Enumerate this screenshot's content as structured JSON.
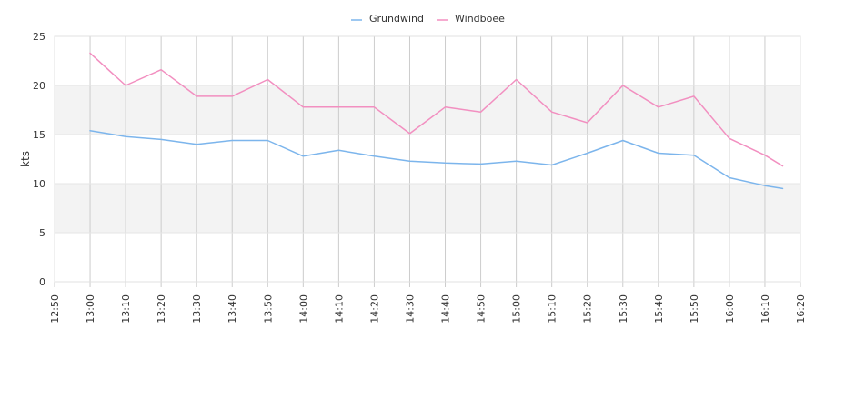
{
  "chart_data": {
    "type": "line",
    "title": "",
    "xlabel": "",
    "ylabel": "kts",
    "x_tick_labels": [
      "12:50",
      "13:00",
      "13:10",
      "13:20",
      "13:30",
      "13:40",
      "13:50",
      "14:00",
      "14:10",
      "14:20",
      "14:30",
      "14:40",
      "14:50",
      "15:00",
      "15:10",
      "15:20",
      "15:30",
      "15:40",
      "15:50",
      "16:00",
      "16:10",
      "16:20"
    ],
    "y_ticks": [
      0,
      5,
      10,
      15,
      20,
      25
    ],
    "ylim": [
      0,
      25
    ],
    "xlim": [
      "12:50",
      "16:20"
    ],
    "grid": true,
    "legend_position": "top-center",
    "x": [
      "13:00",
      "13:10",
      "13:20",
      "13:30",
      "13:40",
      "13:50",
      "14:00",
      "14:10",
      "14:20",
      "14:30",
      "14:40",
      "14:50",
      "15:00",
      "15:10",
      "15:20",
      "15:30",
      "15:40",
      "15:50",
      "16:00",
      "16:10",
      "16:15"
    ],
    "series": [
      {
        "name": "Grundwind",
        "color": "#7cb5ec",
        "values": [
          15.4,
          14.8,
          14.5,
          14.0,
          14.4,
          14.4,
          12.8,
          13.4,
          12.8,
          12.3,
          12.1,
          12.0,
          12.3,
          11.9,
          13.1,
          14.4,
          13.1,
          12.9,
          10.6,
          9.8,
          9.5
        ]
      },
      {
        "name": "Windboee",
        "color": "#f28fc0",
        "values": [
          23.3,
          20.0,
          21.6,
          18.9,
          18.9,
          20.6,
          17.8,
          17.8,
          17.8,
          15.1,
          17.8,
          17.3,
          20.6,
          17.3,
          16.2,
          20.0,
          17.8,
          18.9,
          14.6,
          12.9,
          11.8
        ]
      }
    ]
  }
}
